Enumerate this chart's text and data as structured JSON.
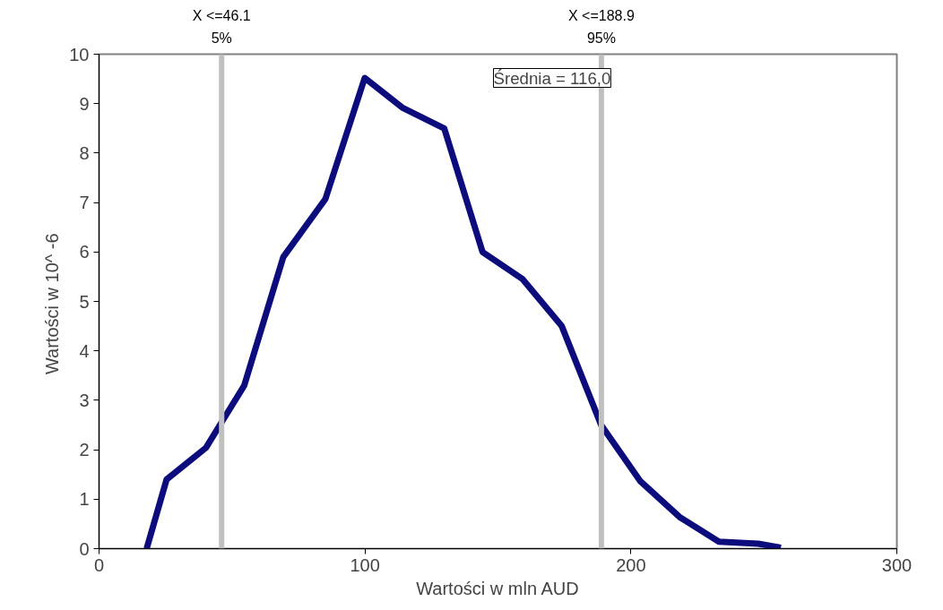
{
  "chart_data": {
    "type": "line",
    "xlabel": "Wartości w mln AUD",
    "ylabel": "Wartości w  10^ -6",
    "x": [
      17.9,
      25.4,
      40.2,
      54.6,
      69.3,
      85.1,
      99.9,
      114,
      129.8,
      144.2,
      159.3,
      174,
      188.8,
      203.6,
      218.3,
      233.1,
      247.9,
      256.4
    ],
    "series": [
      {
        "color": "#0c0c7c",
        "values": [
          0,
          1.4,
          2.04,
          3.3,
          5.9,
          7.07,
          9.52,
          8.92,
          8.5,
          6.0,
          5.45,
          4.5,
          2.5,
          1.36,
          0.64,
          0.14,
          0.1,
          0.02
        ]
      }
    ],
    "xlim": [
      0,
      300
    ],
    "xticks": [
      0,
      100,
      200,
      300
    ],
    "ylim": [
      0,
      10
    ],
    "yticks": [
      0,
      1,
      2,
      3,
      4,
      5,
      6,
      7,
      8,
      9,
      10
    ],
    "grid": false,
    "marker": "none",
    "line_style": "solid",
    "ref_lines": [
      {
        "axis": "x",
        "value": 46.1,
        "label": "X <=46.1\n5%",
        "color": "#c0c0c0"
      },
      {
        "axis": "x",
        "value": 188.9,
        "label": "X <=188.9\n95%",
        "color": "#c0c0c0"
      }
    ],
    "annotations": [
      "Średnia = 116,0"
    ]
  }
}
